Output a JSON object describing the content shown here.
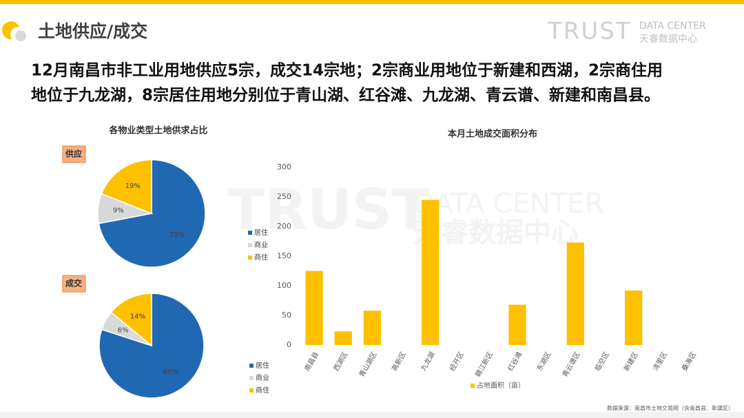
{
  "header": {
    "title": "土地供应/成交",
    "logo_main": "TRUST",
    "logo_sub": "DATA CENTER",
    "logo_cn": "天睿数据中心"
  },
  "summary": [
    "12月南昌市非工业用地供应5宗，成交14宗地；2宗商业用地位于新建和西湖，2宗商住用",
    "地位于九龙湖，8宗居住用地分别位于青山湖、红谷滩、九龙湖、青云谱、新建和南昌县。"
  ],
  "source": "数据来源：南昌市土地交易网（含南昌县、新建区）",
  "chart_data": [
    {
      "type": "pie",
      "title": "各物业类型土地供求占比",
      "label": "供应",
      "categories": [
        "居住",
        "商业",
        "商住"
      ],
      "values": [
        72,
        9,
        19
      ],
      "value_labels": [
        "72%",
        "9%",
        "19%"
      ],
      "colors": [
        "#2168b3",
        "#d9d9d9",
        "#ffc000"
      ]
    },
    {
      "type": "pie",
      "label": "成交",
      "categories": [
        "居住",
        "商业",
        "商住"
      ],
      "values": [
        80,
        6,
        14
      ],
      "value_labels": [
        "80%",
        "6%",
        "14%"
      ],
      "colors": [
        "#2168b3",
        "#d9d9d9",
        "#ffc000"
      ]
    },
    {
      "type": "bar",
      "title": "本月土地成交面积分布",
      "categories": [
        "南昌县",
        "西湖区",
        "青山湖区",
        "高新区",
        "九龙湖",
        "经开区",
        "赣江新区",
        "红谷滩",
        "东湖区",
        "青云谱区",
        "临空区",
        "新建区",
        "湾里区",
        "桑海区"
      ],
      "series": [
        {
          "name": "占地面积（亩）",
          "color": "#ffc000",
          "values": [
            125,
            23,
            58,
            0,
            245,
            0,
            0,
            68,
            0,
            173,
            0,
            92,
            0,
            0
          ]
        }
      ],
      "ylim": [
        0,
        300
      ],
      "yticks": [
        0,
        50,
        100,
        150,
        200,
        250,
        300
      ],
      "grid": false
    }
  ]
}
